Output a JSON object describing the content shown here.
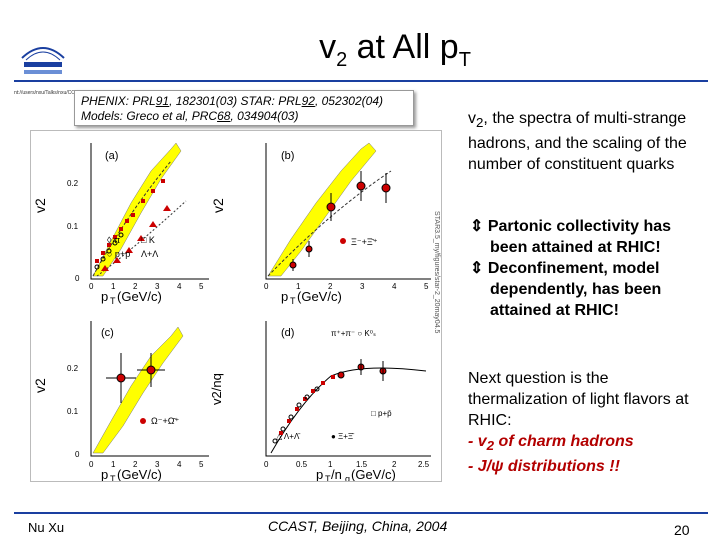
{
  "slide": {
    "title_main": "v",
    "title_sub": "2",
    "title_rest": " at All p",
    "title_sub2": "T",
    "logo_caption": "nt://users/nxu/Talks/nxu/CCAST_2004/pptx.ppt",
    "colors": {
      "rule": "#1a3fa0",
      "band": "#ffff00",
      "red": "#cc0000"
    }
  },
  "reference": {
    "line1_a": "PHENIX: PRL",
    "line1_b": "91",
    "line1_c": ", 182301(03)      STAR: PRL",
    "line1_d": "92",
    "line1_e": ", 052302(04)",
    "line2_a": "Models: Greco et al, PRC",
    "line2_b": "68",
    "line2_c": ", 034904(03)"
  },
  "figure": {
    "panels": [
      {
        "label": "(a)",
        "ylabel": "v2",
        "xlabel": "pT (GeV/c)"
      },
      {
        "label": "(b)",
        "ylabel": "v2",
        "xlabel": "pT (GeV/c)"
      },
      {
        "label": "(c)",
        "ylabel": "v2",
        "xlabel": "pT (GeV/c)"
      },
      {
        "label": "(d)",
        "ylabel": "v2/nq",
        "xlabel": "pT/nq (GeV/c)"
      }
    ],
    "legend_a": [
      "π",
      "K⁰ₛ",
      "p+p̄",
      "Λ+Λ̄"
    ],
    "legend_b": [
      "Ξ⁻+Ξ̄⁺"
    ],
    "legend_c": [
      "Ω⁻+Ω̄⁺"
    ],
    "legend_d": [
      "π⁺+π⁻",
      "K⁰ₛ",
      "p+p̄",
      "Λ+Λ̄",
      "Ξ+Ξ̄"
    ],
    "side_note": "STAR3.5_my/figures/star-2_20may04.5"
  },
  "text": {
    "para1_a": "v",
    "para1_sub": "2",
    "para1_b": ", the spectra of multi-strange hadrons, and the scaling of the number of constituent quarks",
    "bullet1": "Partonic collectivity has been attained at RHIC!",
    "bullet2": "Deconfinement, model dependently, has been attained at RHIC!",
    "para3": "Next question is the thermalization of light flavors at RHIC:",
    "item1_a": "- v",
    "item1_sub": "2",
    "item1_b": " of charm hadrons",
    "item2": "- J/ψ distributions !!"
  },
  "footer": {
    "author": "Nu Xu",
    "venue": "CCAST, Beijing, China, 2004",
    "page": "20"
  }
}
